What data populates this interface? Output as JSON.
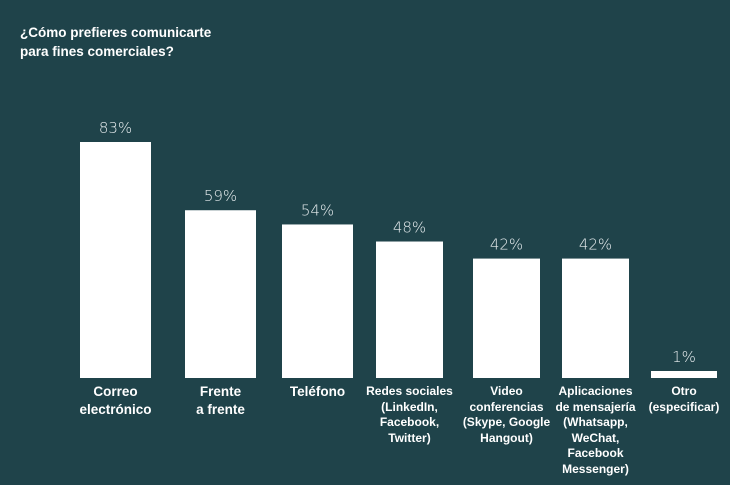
{
  "chart_data": {
    "type": "bar",
    "title": "¿Cómo prefieres comunicarte para fines comerciales?",
    "xlabel": "",
    "ylabel": "",
    "ylim": [
      0,
      100
    ],
    "grid": false,
    "categories": [
      "Correo\nelectrónico",
      "Frente\na frente",
      "Teléfono",
      "Redes sociales\n(LinkedIn,\nFacebook,\nTwitter)",
      "Video\nconferencias\n(Skype, Google\nHangout)",
      "Aplicaciones\nde mensajería\n(Whatsapp,\nWeChat,\nFacebook\nMessenger)",
      "Otro\n(especificar)"
    ],
    "values": [
      83,
      59,
      54,
      48,
      42,
      42,
      1
    ],
    "value_labels": [
      "83%",
      "59%",
      "54%",
      "48%",
      "42%",
      "42%",
      "1%"
    ],
    "colors": {
      "background": "#1f434a",
      "bar": "#ffffff",
      "text": "#ffffff"
    }
  }
}
